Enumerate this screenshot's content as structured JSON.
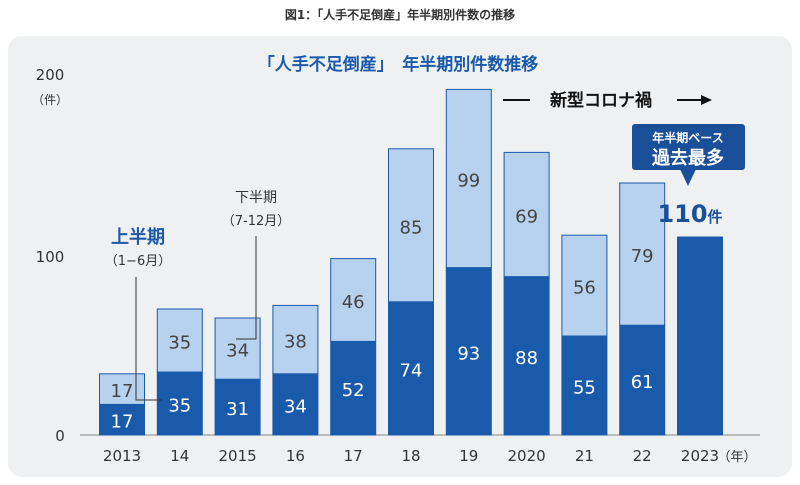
{
  "figure_title": "図1：「人手不足倒産」年半期別件数の推移",
  "chart_data": {
    "type": "bar",
    "stacked": true,
    "title": "「人手不足倒産」　年半期別件数推移",
    "categories": [
      "2013",
      "14",
      "2015",
      "16",
      "17",
      "18",
      "19",
      "2020",
      "21",
      "22",
      "2023"
    ],
    "x_unit": "（年）",
    "y_unit": "（件）",
    "ylim": [
      0,
      200
    ],
    "yticks": [
      0,
      100,
      200
    ],
    "grid": false,
    "series": [
      {
        "name": "上半期",
        "sub": "（1−6月）",
        "color": "#1a5aab",
        "text_color": "#ffffff",
        "values": [
          17,
          35,
          31,
          34,
          52,
          74,
          93,
          88,
          55,
          61,
          110
        ]
      },
      {
        "name": "下半期",
        "sub": "（7-12月）",
        "color": "#b7d2ee",
        "text_color": "#444444",
        "values": [
          17,
          35,
          34,
          38,
          46,
          85,
          99,
          69,
          56,
          79,
          null
        ]
      }
    ],
    "annotations": {
      "covid_label": "新型コロナ禍",
      "record_line1": "年半期ベース",
      "record_line2": "過去最多",
      "record_value": "110",
      "record_unit": "件"
    }
  }
}
